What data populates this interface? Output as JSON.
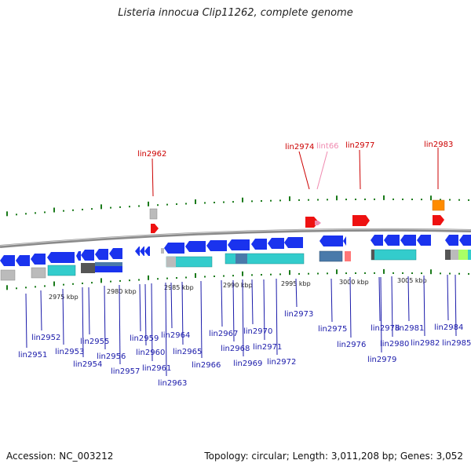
{
  "title": "Listeria innocua Clip11262, complete genome",
  "footer": {
    "accession": "Accession: NC_003212",
    "summary": "Topology: circular; Length: 3,011,208 bp; Genes: 3,052"
  },
  "colors": {
    "backbone": "#8a8a8a",
    "label_blue": "#1a1aaa",
    "label_red": "#cc0000",
    "label_pink": "#f08ab0",
    "tick_green": "#1a7a1a",
    "gene_blue": "#1a33ee",
    "gene_cyan": "#33cccc",
    "gene_red": "#ee1111",
    "gene_orange": "#ff8c00",
    "gene_gray": "#bbbbbb",
    "gene_steel": "#4a7aaa",
    "gene_pink": "#ff7777",
    "gene_lime": "#aaff66"
  },
  "scale_labels": [
    "2975 kbp",
    "2980 kbp",
    "2985 kbp",
    "2990 kbp",
    "2995 kbp",
    "3000 kbp",
    "3005 kbp"
  ],
  "top_genes": [
    "lin2962",
    "lin2974",
    "lint66",
    "lin2977",
    "lin2983"
  ],
  "bottom_genes": [
    "lin2951",
    "lin2952",
    "lin2953",
    "lin2954",
    "lin2955",
    "lin2956",
    "lin2957",
    "lin2959",
    "lin2960",
    "lin2961",
    "lin2963",
    "lin2964",
    "lin2965",
    "lin2966",
    "lin2967",
    "lin2968",
    "lin2969",
    "lin2970",
    "lin2971",
    "lin2972",
    "lin2973",
    "lin2975",
    "lin2976",
    "lin2978",
    "lin2979",
    "lin2980",
    "lin2981",
    "lin2982",
    "lin2984",
    "lin2985"
  ]
}
